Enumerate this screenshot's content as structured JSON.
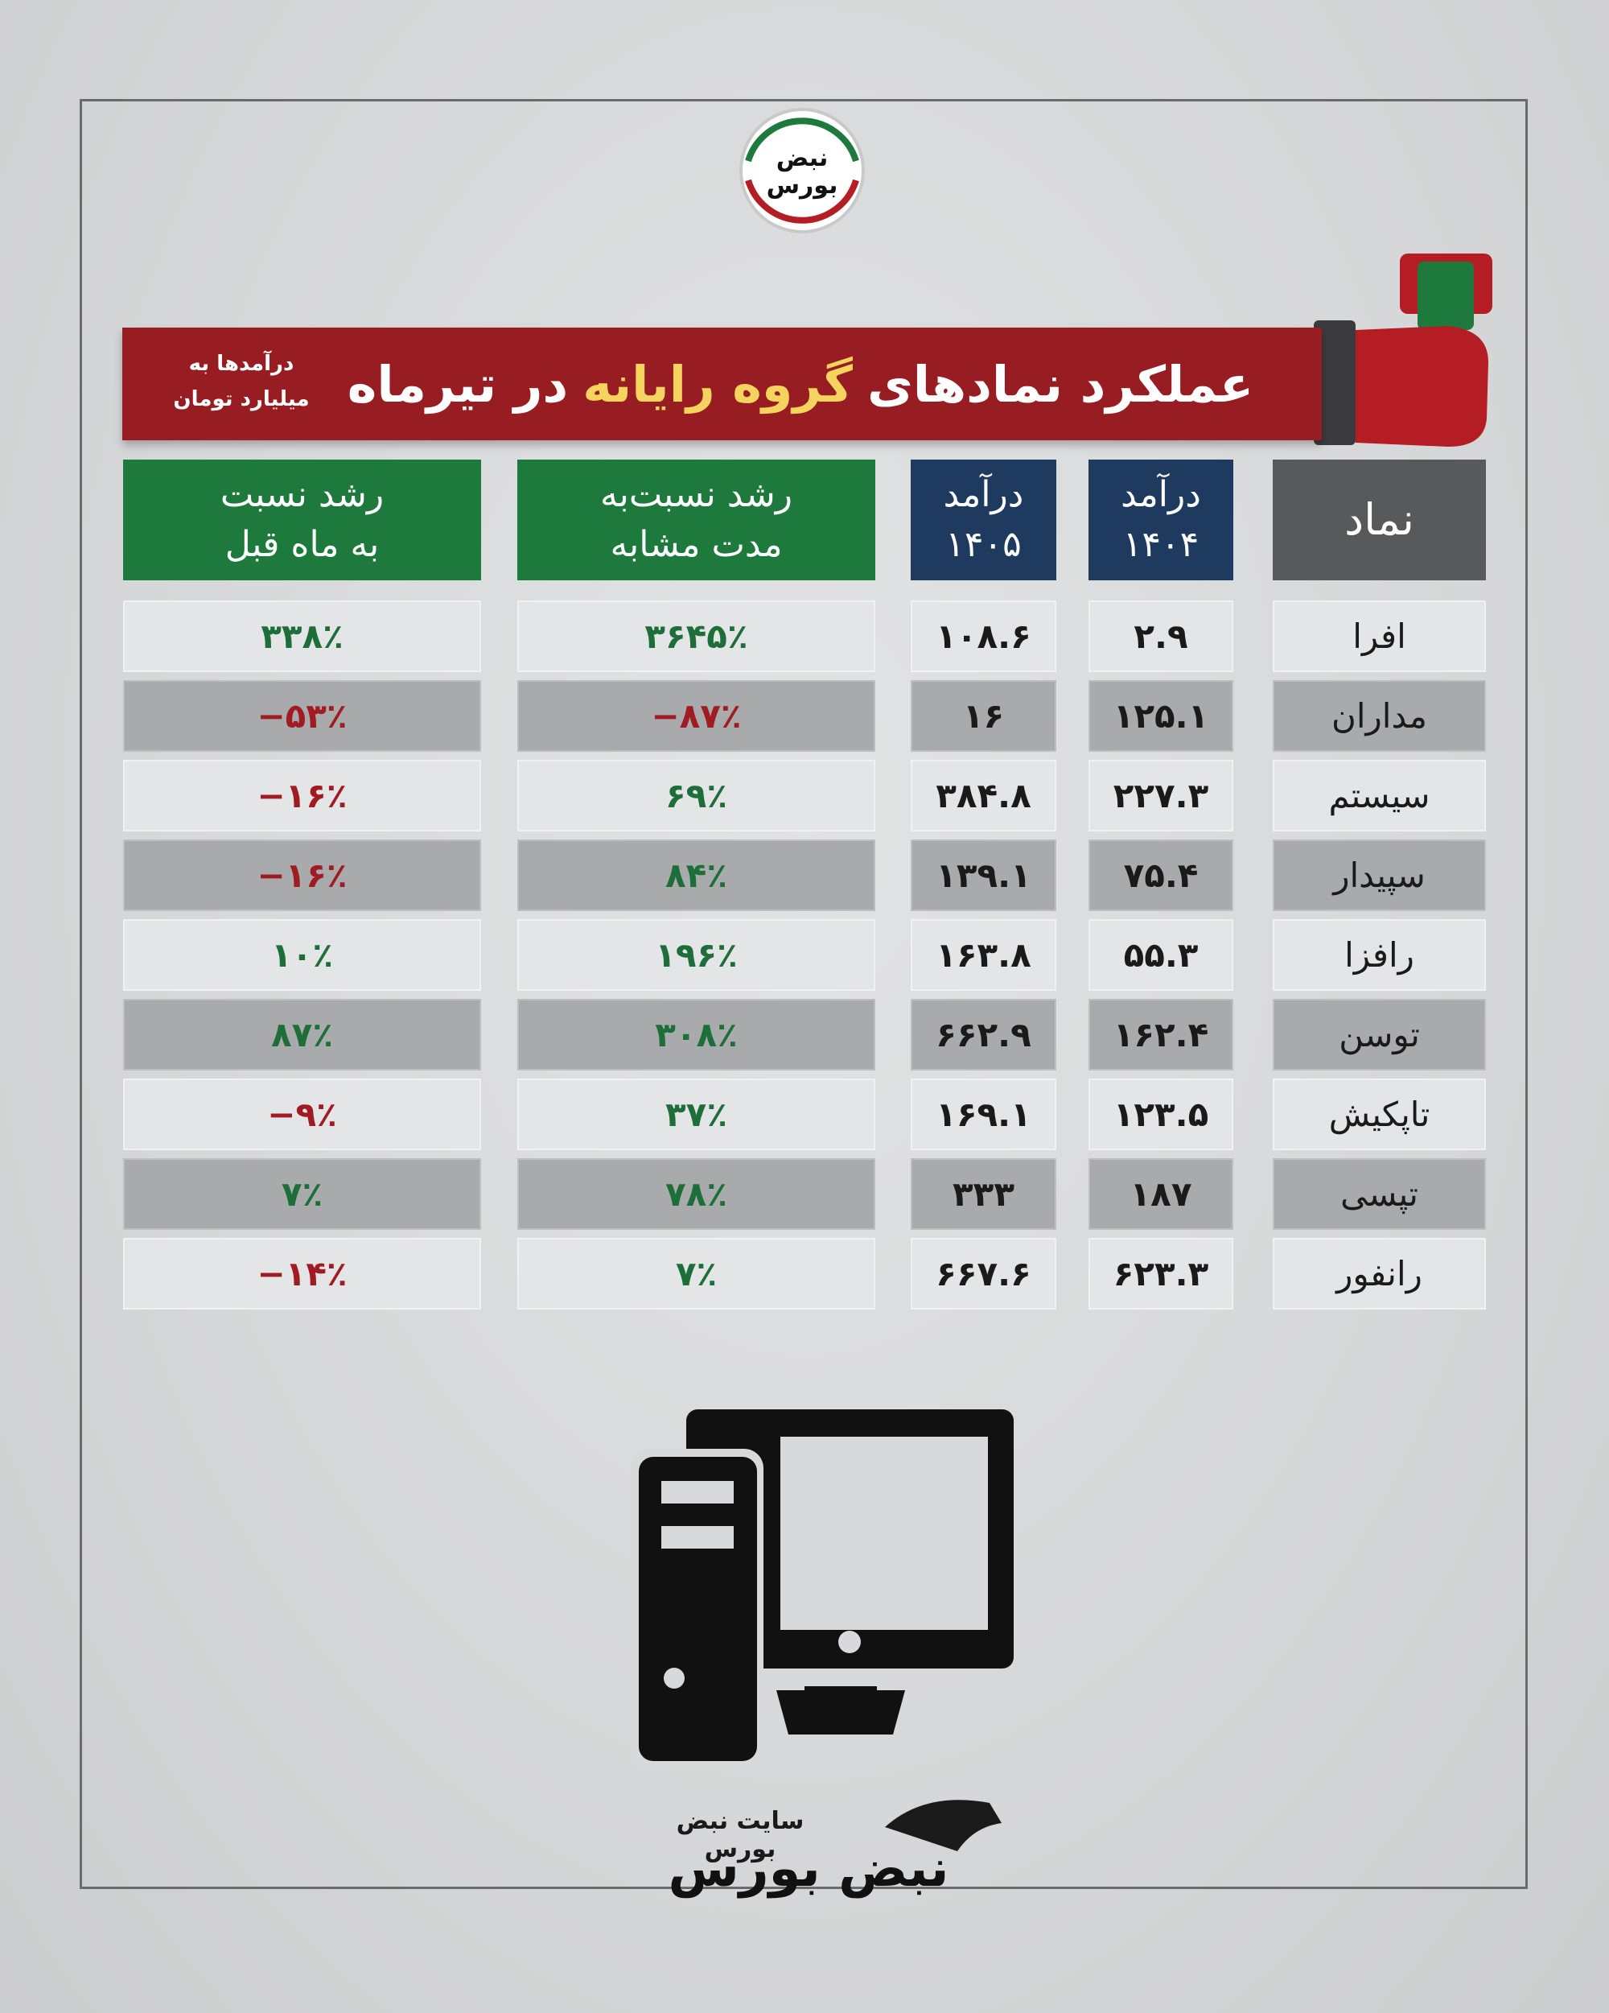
{
  "logo": {
    "text": "نبض بورس"
  },
  "header": {
    "title": [
      "عملکرد نمادهای",
      "گروه رایانه",
      "در تیرماه"
    ],
    "note": [
      "درآمدها به",
      "میلیارد تومان"
    ]
  },
  "table": {
    "columns": [
      [
        "نماد"
      ],
      [
        "درآمد",
        "۱۴۰۴"
      ],
      [
        "درآمد",
        "۱۴۰۵"
      ],
      [
        "رشد نسبت‌به",
        "مدت مشابه"
      ],
      [
        "رشد نسبت",
        "به ماه قبل"
      ]
    ],
    "rows": [
      [
        "افرا",
        "۲.۹",
        "۱۰۸.۶",
        "۳۶۴۵٪",
        "۳۳۸٪"
      ],
      [
        "مداران",
        "۱۲۵.۱",
        "۱۶",
        "−۸۷٪",
        "−۵۳٪"
      ],
      [
        "سیستم",
        "۲۲۷.۳",
        "۳۸۴.۸",
        "۶۹٪",
        "−۱۶٪"
      ],
      [
        "سپیدار",
        "۷۵.۴",
        "۱۳۹.۱",
        "۸۴٪",
        "−۱۶٪"
      ],
      [
        "رافزا",
        "۵۵.۳",
        "۱۶۳.۸",
        "۱۹۶٪",
        "۱۰٪"
      ],
      [
        "توسن",
        "۱۶۲.۴",
        "۶۶۲.۹",
        "۳۰۸٪",
        "۸۷٪"
      ],
      [
        "تاپکیش",
        "۱۲۳.۵",
        "۱۶۹.۱",
        "۳۷٪",
        "−۹٪"
      ],
      [
        "تپسی",
        "۱۸۷",
        "۳۳۳",
        "۷۸٪",
        "۷٪"
      ],
      [
        "رانفور",
        "۶۲۳.۳",
        "۶۶۷.۶",
        "۷٪",
        "−۱۴٪"
      ]
    ]
  },
  "footer": {
    "site": "سایت نبض بورس",
    "brand": "نبض بورس"
  }
}
